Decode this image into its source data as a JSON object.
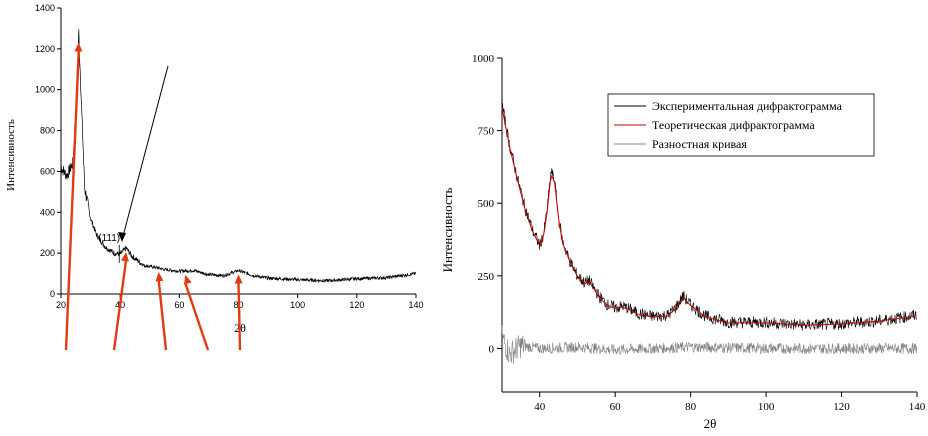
{
  "chart_data": [
    {
      "type": "line",
      "title": "",
      "xlabel": "2θ",
      "ylabel": "Интенсивность",
      "xlim": [
        20,
        140
      ],
      "ylim": [
        0,
        1400
      ],
      "x_ticks": [
        20,
        40,
        60,
        80,
        100,
        120,
        140
      ],
      "y_ticks": [
        0,
        200,
        400,
        600,
        800,
        1000,
        1200,
        1400
      ],
      "grid": false,
      "series": [
        {
          "x": [
            20,
            22,
            24,
            25,
            26,
            27,
            28,
            30,
            32,
            35,
            38,
            40,
            42,
            44,
            48,
            52,
            55,
            60,
            65,
            70,
            75,
            80,
            85,
            90,
            100,
            110,
            120,
            130,
            140
          ],
          "values": [
            620,
            580,
            640,
            900,
            1280,
            900,
            520,
            370,
            290,
            230,
            200,
            195,
            225,
            185,
            140,
            130,
            120,
            112,
            115,
            95,
            90,
            115,
            90,
            78,
            70,
            65,
            75,
            80,
            100
          ]
        }
      ],
      "annotations": [
        {
          "text": "(111)",
          "x": 38,
          "y": 260
        }
      ],
      "arrow_targets_x": [
        26,
        42,
        53,
        62,
        80
      ]
    },
    {
      "type": "line",
      "title": "",
      "xlabel": "2θ",
      "ylabel": "Интенсивность",
      "xlim": [
        30,
        140
      ],
      "ylim": [
        -150,
        1000
      ],
      "x_ticks": [
        40,
        60,
        80,
        100,
        120,
        140
      ],
      "y_ticks": [
        0,
        250,
        500,
        750,
        1000
      ],
      "grid": false,
      "legend_position": "top-center",
      "series": [
        {
          "name": "Экспериментальная дифрактограмма",
          "color": "#000000",
          "x": [
            30,
            32,
            34,
            36,
            38,
            40,
            41,
            42,
            43,
            44,
            45,
            46,
            48,
            50,
            52,
            53,
            54,
            56,
            58,
            60,
            62,
            64,
            66,
            70,
            74,
            76,
            78,
            80,
            84,
            90,
            100,
            110,
            120,
            130,
            140
          ],
          "values": [
            840,
            700,
            590,
            490,
            410,
            355,
            390,
            480,
            610,
            575,
            450,
            370,
            300,
            250,
            225,
            235,
            215,
            175,
            150,
            140,
            145,
            135,
            120,
            110,
            115,
            140,
            180,
            150,
            110,
            90,
            90,
            80,
            85,
            95,
            115
          ]
        },
        {
          "name": "Теоретическая дифрактограмма",
          "color": "#cc0000",
          "x": [
            30,
            32,
            34,
            36,
            38,
            40,
            41,
            42,
            43,
            44,
            45,
            46,
            48,
            50,
            52,
            53,
            54,
            56,
            58,
            60,
            62,
            64,
            66,
            70,
            74,
            76,
            78,
            80,
            84,
            90,
            100,
            110,
            120,
            130,
            140
          ],
          "values": [
            830,
            695,
            585,
            485,
            405,
            355,
            385,
            475,
            600,
            570,
            445,
            365,
            298,
            248,
            222,
            232,
            212,
            172,
            148,
            138,
            142,
            132,
            118,
            108,
            112,
            138,
            175,
            148,
            108,
            88,
            88,
            80,
            84,
            94,
            112
          ]
        },
        {
          "name": "Разностная кривая",
          "color": "#808080",
          "x": [
            30,
            32,
            35,
            40,
            50,
            60,
            80,
            100,
            120,
            140
          ],
          "values": [
            40,
            -20,
            10,
            0,
            5,
            -5,
            5,
            0,
            0,
            0
          ]
        }
      ]
    }
  ]
}
